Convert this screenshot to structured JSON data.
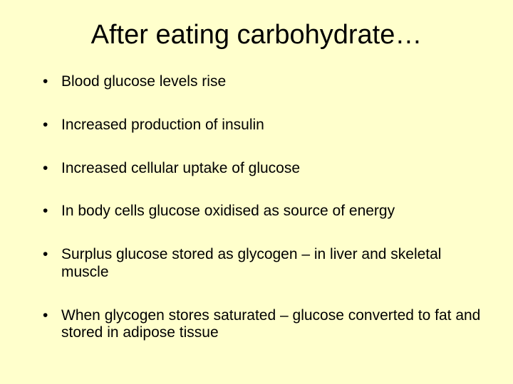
{
  "background_color": "#ffffcc",
  "text_color": "#000000",
  "title": {
    "text": "After eating carbohydrate…",
    "fontsize": 38,
    "align": "center"
  },
  "bullets": {
    "fontsize": 21,
    "items": [
      "Blood glucose levels rise",
      "Increased production of insulin",
      "Increased cellular uptake of glucose",
      "In body cells glucose oxidised as source of energy",
      "Surplus glucose stored as glycogen – in liver and skeletal muscle",
      "When glycogen stores saturated – glucose converted to fat and stored in adipose tissue"
    ]
  }
}
